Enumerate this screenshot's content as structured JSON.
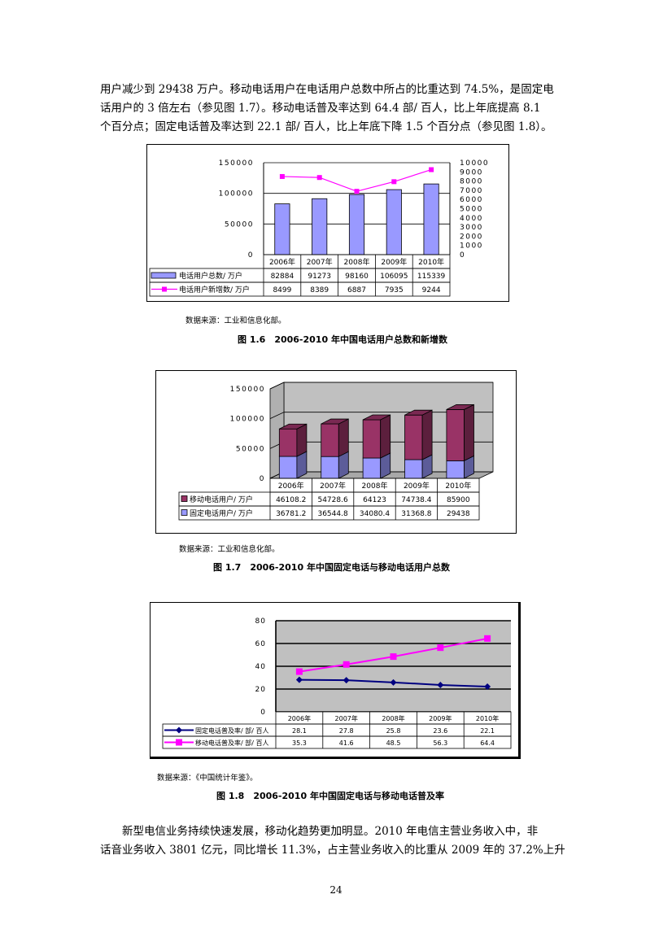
{
  "intro": {
    "lines": [
      "用户减少到 29438 万户。移动电话用户在电话用户总数中所占的比重达到 74.5%，是固定电",
      "话用户的 3 倍左右（参见图 1.7）。移动电话普及率达到 64.4 部/ 百人，比上年底提高 8.1",
      "个百分点；固定电话普及率达到 22.1 部/ 百人，比上年底下降 1.5 个百分点（参见图 1.8）。"
    ]
  },
  "figure1": {
    "caption": "图 1.6　2006-2010 年中国电话用户总数和新增数",
    "source": "数据来源：工业和信息化部。"
  },
  "figure2": {
    "caption": "图 1.7　2006-2010 年中国固定电话与移动电话用户总数",
    "source": "数据来源：工业和信息化部。"
  },
  "figure3": {
    "caption": "图 1.8　2006-2010 年中国固定电话与移动电话普及率",
    "source": "数据来源：《中国统计年鉴》。"
  },
  "outro": {
    "lines": [
      "　　新型电信业务持续快速发展，移动化趋势更加明显。2010 年电信主营业务收入中，非",
      "话音业务收入 3801 亿元，同比增长 11.3%，占主营业务收入的比重从 2009 年的 37.2%上升"
    ]
  },
  "page_number": "24",
  "chart_data": [
    {
      "type": "bar",
      "categories": [
        "2006年",
        "2007年",
        "2008年",
        "2009年",
        "2010年"
      ],
      "series": [
        {
          "name": "电话用户总数/ 万户",
          "kind": "bar",
          "axis": "left",
          "color": "#9999ff",
          "values": [
            82884,
            91273,
            98160,
            106095,
            115339
          ]
        },
        {
          "name": "电话用户新增数/ 万户",
          "kind": "line",
          "axis": "right",
          "color": "#ff00ff",
          "values": [
            8499,
            8389,
            6887,
            7935,
            9244
          ]
        }
      ],
      "left_axis": {
        "min": 0,
        "max": 150000,
        "ticks": [
          "0",
          "50000",
          "100000",
          "150000"
        ]
      },
      "right_axis": {
        "min": 0,
        "max": 10000,
        "ticks": [
          "0",
          "1000",
          "2000",
          "3000",
          "4000",
          "5000",
          "6000",
          "7000",
          "8000",
          "9000",
          "10000"
        ]
      },
      "table": [
        [
          "82884",
          "91273",
          "98160",
          "106095",
          "115339"
        ],
        [
          "8499",
          "8389",
          "6887",
          "7935",
          "9244"
        ]
      ],
      "grid": true
    },
    {
      "type": "bar",
      "stacked": true,
      "categories": [
        "2006年",
        "2007年",
        "2008年",
        "2009年",
        "2010年"
      ],
      "series": [
        {
          "name": "移动电话用户/ 万户",
          "color": "#993366",
          "values": [
            46108.2,
            54728.6,
            64123,
            74738.4,
            85900
          ]
        },
        {
          "name": "固定电话用户/ 万户",
          "color": "#9999ff",
          "values": [
            36781.2,
            36544.8,
            34080.4,
            31368.8,
            29438
          ]
        }
      ],
      "y_axis": {
        "min": 0,
        "max": 150000,
        "ticks": [
          "0",
          "50000",
          "100000",
          "150000"
        ]
      },
      "table": [
        [
          "46108.2",
          "54728.6",
          "64123",
          "74738.4",
          "85900"
        ],
        [
          "36781.2",
          "36544.8",
          "34080.4",
          "31368.8",
          "29438"
        ]
      ],
      "grid": true
    },
    {
      "type": "line",
      "categories": [
        "2006年",
        "2007年",
        "2008年",
        "2009年",
        "2010年"
      ],
      "series": [
        {
          "name": "固定电话普及率/ 部/ 百人",
          "color": "#000080",
          "values": [
            28.1,
            27.8,
            25.8,
            23.6,
            22.1
          ]
        },
        {
          "name": "移动电话普及率/ 部/ 百人",
          "color": "#ff00ff",
          "values": [
            35.3,
            41.6,
            48.5,
            56.3,
            64.4
          ]
        }
      ],
      "y_axis": {
        "min": 0,
        "max": 80,
        "ticks": [
          "0",
          "20",
          "40",
          "60",
          "80"
        ]
      },
      "table": [
        [
          "28.1",
          "27.8",
          "25.8",
          "23.6",
          "22.1"
        ],
        [
          "35.3",
          "41.6",
          "48.5",
          "56.3",
          "64.4"
        ]
      ],
      "grid": true
    }
  ]
}
